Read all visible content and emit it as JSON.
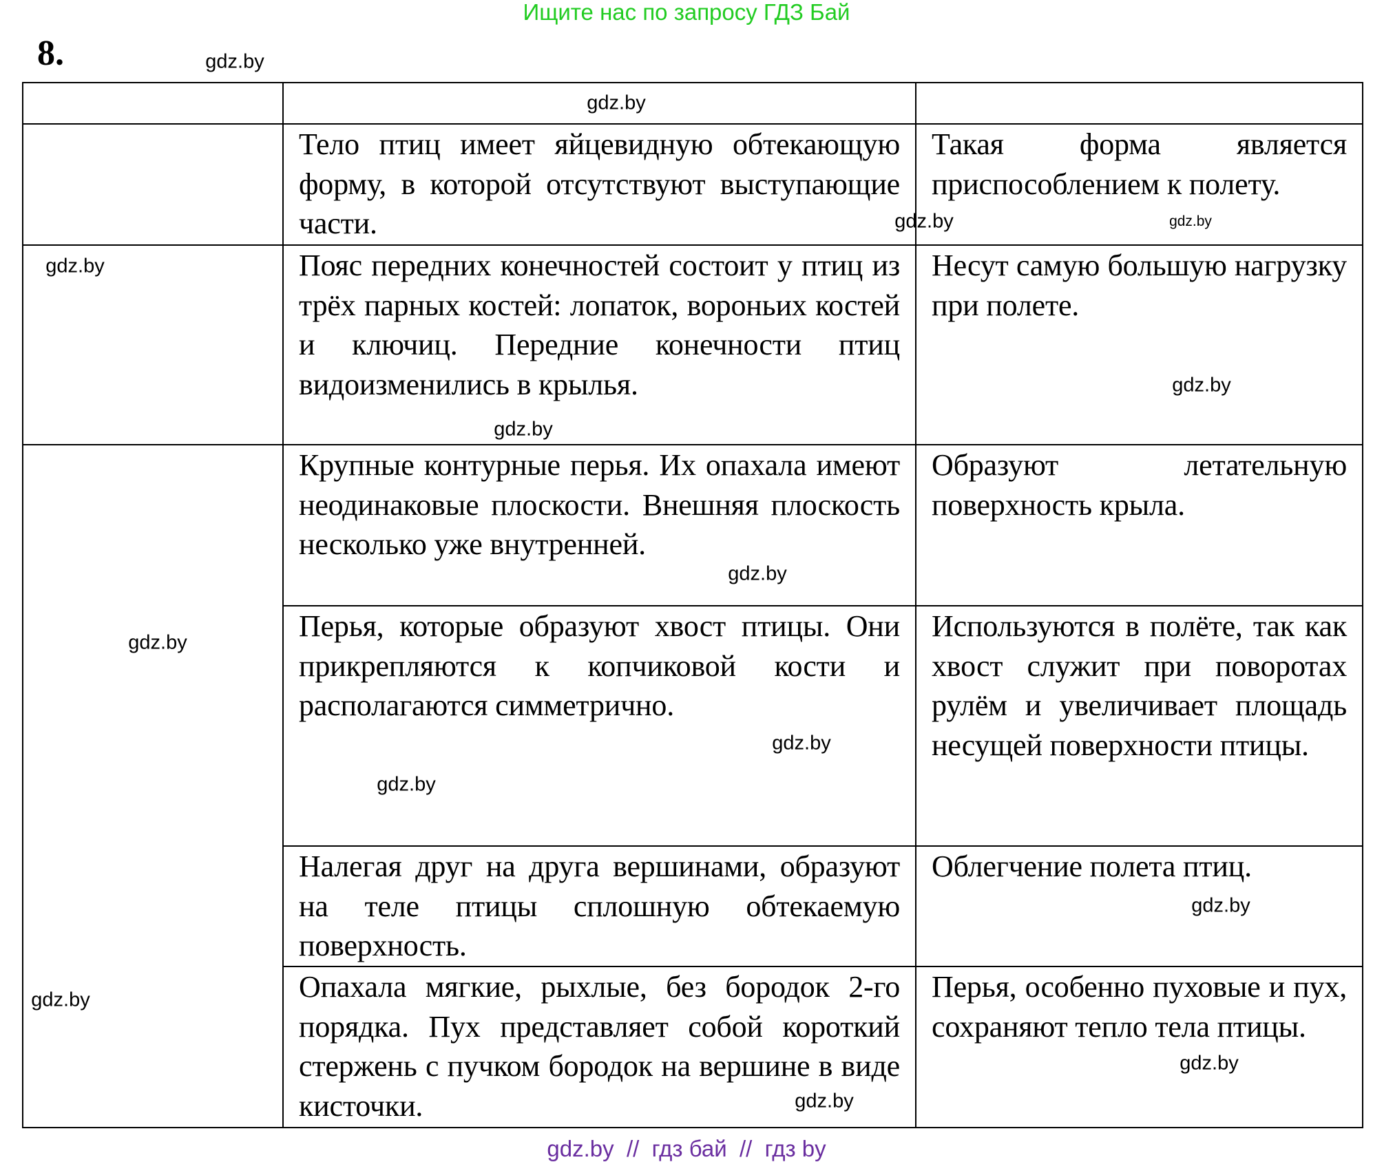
{
  "banner": "Ищите нас по запросу ГДЗ Бай",
  "task_number": "8.",
  "table": {
    "rows": [
      {
        "c1": "",
        "c2": "",
        "c3": ""
      },
      {
        "c1": "",
        "c2": "Тело птиц имеет яйцевидную обтекающую форму, в которой отсутствуют выступающие части.",
        "c3": "Такая форма является приспособлением к полету."
      },
      {
        "c1": "",
        "c2": "Пояс передних конечностей состоит у птиц из трёх парных костей: лопаток, вороньих костей и ключиц. Передние конечности птиц видоизменились в крылья.",
        "c3": "Несут самую большую нагрузку при полете."
      },
      {
        "c1": "",
        "c2": "Крупные контурные перья. Их опахала имеют неодинаковые плоскости. Внешняя плоскость несколько уже внутренней.",
        "c3": "Образуют летательную поверхность крыла."
      },
      {
        "c2": "Перья, которые образуют хвост птицы. Они прикрепляются к копчиковой кости и располагаются симметрично.",
        "c3": "Используются в полёте, так как хвост служит при поворотах рулём и увеличивает площадь несущей поверхности птицы."
      },
      {
        "c2": "Налегая друг на друга вершинами, образуют на теле птицы сплошную обтекаемую поверхность.",
        "c3": "Облегчение полета птиц."
      },
      {
        "c2": "Опахала мягкие, рыхлые, без бородок 2-го порядка. Пух представляет собой короткий стержень с пучком бородок на вершине в виде кисточки.",
        "c3": "Перья, особенно пуховые и пух, сохраняют тепло тела птицы."
      }
    ]
  },
  "watermark": "gdz.by",
  "footer": "gdz.by  //  гдз бай  //  гдз by",
  "colors": {
    "banner": "#22cc22",
    "footer": "#6a2ea0"
  }
}
